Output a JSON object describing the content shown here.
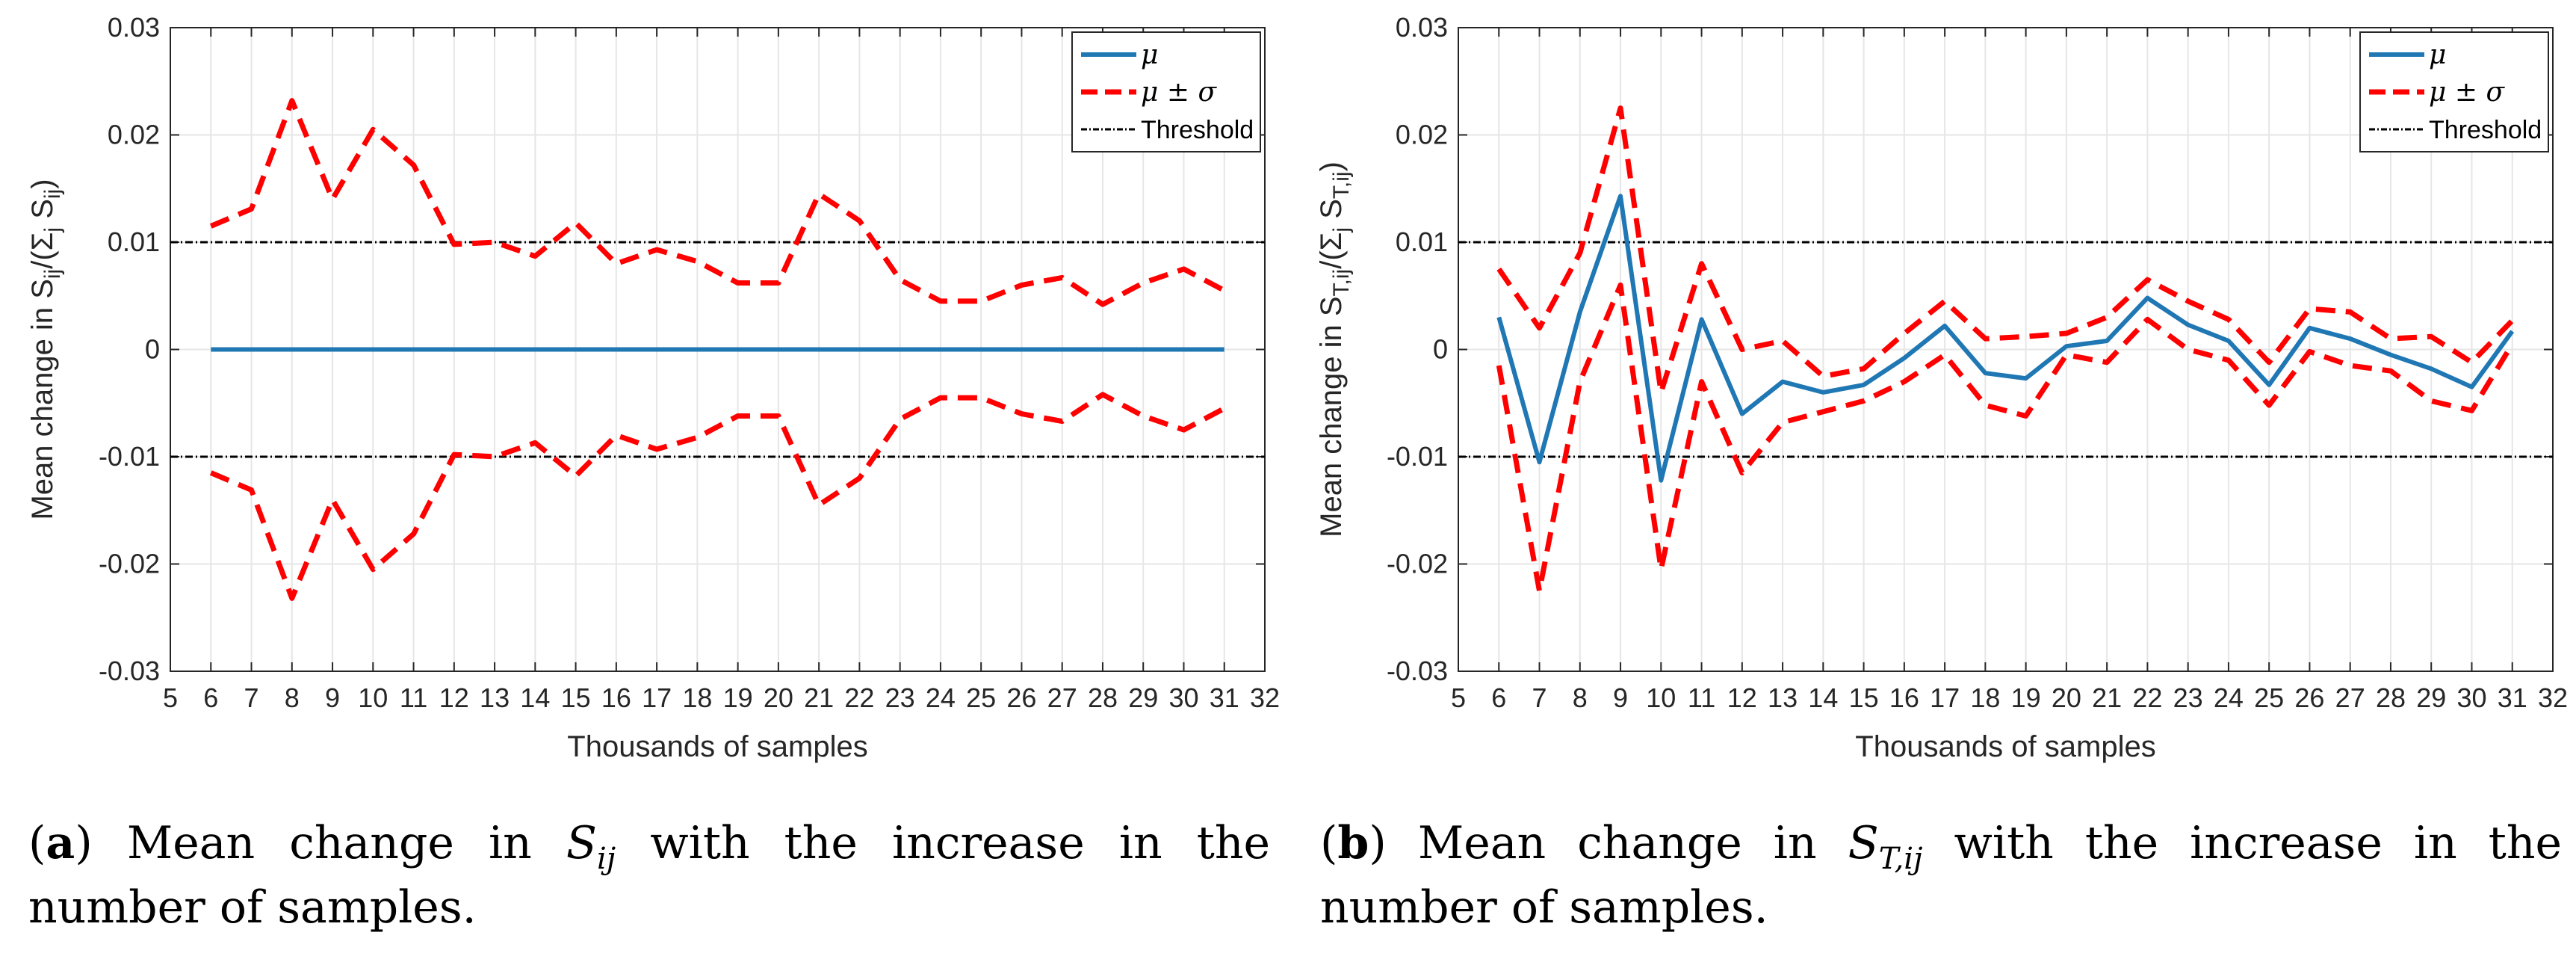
{
  "chart_data": [
    {
      "type": "line",
      "panel": "a",
      "ylabel": "Mean change in S_ij/(Σ_j S_ij)",
      "ylabel_parts": {
        "prefix": "Mean change in S",
        "sub1": "ij",
        "mid": "/(Σ",
        "sub2": "j",
        "mid2": " S",
        "sub3": "ij",
        "suffix": ")"
      },
      "xlabel": "Thousands of samples",
      "xlim": [
        5,
        32
      ],
      "ylim": [
        -0.03,
        0.03
      ],
      "xticks": [
        5,
        6,
        7,
        8,
        9,
        10,
        11,
        12,
        13,
        14,
        15,
        16,
        17,
        18,
        19,
        20,
        21,
        22,
        23,
        24,
        25,
        26,
        27,
        28,
        29,
        30,
        31,
        32
      ],
      "yticks": [
        -0.03,
        -0.02,
        -0.01,
        0,
        0.01,
        0.02,
        0.03
      ],
      "ytick_labels": [
        "-0.03",
        "-0.02",
        "-0.01",
        "0",
        "0.01",
        "0.02",
        "0.03"
      ],
      "grid": true,
      "legend_position": "top-right",
      "legend": [
        "μ",
        "μ ± σ",
        "Threshold"
      ],
      "x": [
        6,
        7,
        8,
        9,
        10,
        11,
        12,
        13,
        14,
        15,
        16,
        17,
        18,
        19,
        20,
        21,
        22,
        23,
        24,
        25,
        26,
        27,
        28,
        29,
        30,
        31
      ],
      "series": [
        {
          "name": "μ",
          "color": "#1f77b4",
          "style": "solid",
          "values": [
            0,
            0,
            0,
            0,
            0,
            0,
            0,
            0,
            0,
            0,
            0,
            0,
            0,
            0,
            0,
            0,
            0,
            0,
            0,
            0,
            0,
            0,
            0,
            0,
            0,
            0
          ]
        },
        {
          "name": "μ + σ",
          "color": "#ff0000",
          "style": "dashed",
          "values": [
            0.0115,
            0.0131,
            0.0232,
            0.014,
            0.0205,
            0.0172,
            0.0098,
            0.01,
            0.0087,
            0.0118,
            0.008,
            0.0093,
            0.0082,
            0.0062,
            0.0062,
            0.0145,
            0.012,
            0.0065,
            0.0045,
            0.0045,
            0.006,
            0.0067,
            0.0042,
            0.0062,
            0.0075,
            0.0055
          ]
        },
        {
          "name": "μ - σ",
          "color": "#ff0000",
          "style": "dashed",
          "values": [
            -0.0115,
            -0.0131,
            -0.0232,
            -0.014,
            -0.0205,
            -0.0172,
            -0.0098,
            -0.01,
            -0.0087,
            -0.0118,
            -0.008,
            -0.0093,
            -0.0082,
            -0.0062,
            -0.0062,
            -0.0145,
            -0.012,
            -0.0065,
            -0.0045,
            -0.0045,
            -0.006,
            -0.0067,
            -0.0042,
            -0.0062,
            -0.0075,
            -0.0055
          ]
        }
      ],
      "thresholds": [
        0.01,
        -0.01
      ]
    },
    {
      "type": "line",
      "panel": "b",
      "ylabel": "Mean change in S_T,ij/(Σ_j S_T,ij)",
      "ylabel_parts": {
        "prefix": "Mean change in S",
        "sub1": "T,ij",
        "mid": "/(Σ",
        "sub2": "j",
        "mid2": " S",
        "sub3": "T,ij",
        "suffix": ")"
      },
      "xlabel": "Thousands of samples",
      "xlim": [
        5,
        32
      ],
      "ylim": [
        -0.03,
        0.03
      ],
      "xticks": [
        5,
        6,
        7,
        8,
        9,
        10,
        11,
        12,
        13,
        14,
        15,
        16,
        17,
        18,
        19,
        20,
        21,
        22,
        23,
        24,
        25,
        26,
        27,
        28,
        29,
        30,
        31,
        32
      ],
      "yticks": [
        -0.03,
        -0.02,
        -0.01,
        0,
        0.01,
        0.02,
        0.03
      ],
      "ytick_labels": [
        "-0.03",
        "-0.02",
        "-0.01",
        "0",
        "0.01",
        "0.02",
        "0.03"
      ],
      "grid": true,
      "legend_position": "top-right",
      "legend": [
        "μ",
        "μ ± σ",
        "Threshold"
      ],
      "x": [
        6,
        7,
        8,
        9,
        10,
        11,
        12,
        13,
        14,
        15,
        16,
        17,
        18,
        19,
        20,
        21,
        22,
        23,
        24,
        25,
        26,
        27,
        28,
        29,
        30,
        31
      ],
      "series": [
        {
          "name": "μ",
          "color": "#1f77b4",
          "style": "solid",
          "values": [
            0.003,
            -0.0105,
            0.0035,
            0.0143,
            -0.0122,
            0.0028,
            -0.006,
            -0.003,
            -0.004,
            -0.0033,
            -0.0008,
            0.0022,
            -0.0022,
            -0.0027,
            0.0003,
            0.0008,
            0.0048,
            0.0023,
            0.0008,
            -0.0033,
            0.002,
            0.001,
            -0.0005,
            -0.0018,
            -0.0035,
            0.0017
          ]
        },
        {
          "name": "μ + σ",
          "color": "#ff0000",
          "style": "dashed",
          "values": [
            0.0075,
            0.002,
            0.009,
            0.0225,
            -0.004,
            0.008,
            0.0,
            0.0008,
            -0.0025,
            -0.0018,
            0.0015,
            0.0045,
            0.001,
            0.0012,
            0.0015,
            0.003,
            0.0065,
            0.0045,
            0.0028,
            -0.0012,
            0.0038,
            0.0035,
            0.001,
            0.0012,
            -0.0012,
            0.0027
          ]
        },
        {
          "name": "μ - σ",
          "color": "#ff0000",
          "style": "dashed",
          "values": [
            -0.0015,
            -0.0225,
            -0.003,
            0.006,
            -0.0205,
            -0.003,
            -0.0115,
            -0.0068,
            -0.0058,
            -0.0048,
            -0.003,
            -0.0005,
            -0.0052,
            -0.0062,
            -0.0005,
            -0.0012,
            0.0028,
            0.0,
            -0.001,
            -0.0052,
            -0.0002,
            -0.0015,
            -0.002,
            -0.0048,
            -0.0057,
            0.0005
          ]
        }
      ],
      "thresholds": [
        0.01,
        -0.01
      ]
    }
  ],
  "captions": [
    {
      "label": "a",
      "text_before": "Mean change in ",
      "symbol": "S",
      "symbol_sub": "ij",
      "text_after": " with the increase in the number of samples."
    },
    {
      "label": "b",
      "text_before": "Mean change in ",
      "symbol": "S",
      "symbol_sub": "T,ij",
      "text_after": " with the increase in the number of samples."
    }
  ]
}
